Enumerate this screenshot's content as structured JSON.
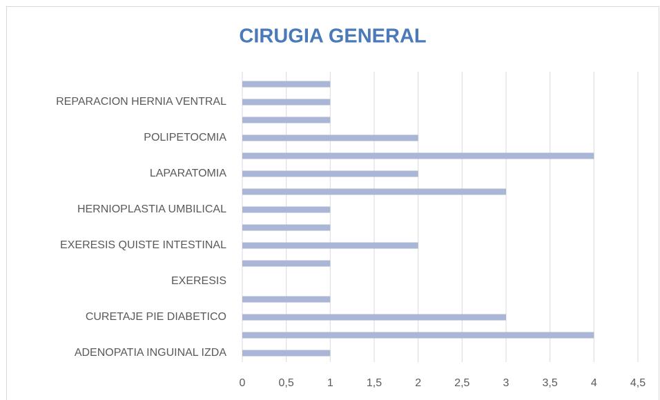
{
  "chart_data": {
    "type": "bar",
    "orientation": "horizontal",
    "title": "CIRUGIA GENERAL",
    "categories": [
      "ADENOPATIA INGUINAL IZDA",
      null,
      "CURETAJE PIE DIABETICO",
      null,
      "EXERESIS",
      null,
      "EXERESIS QUISTE INTESTINAL",
      null,
      "HERNIOPLASTIA UMBILICAL",
      null,
      "LAPARATOMIA",
      null,
      "POLIPETOCMIA",
      null,
      "REPARACION HERNIA VENTRAL",
      null
    ],
    "values": [
      1,
      4,
      3,
      1,
      0,
      1,
      2,
      1,
      1,
      3,
      2,
      4,
      2,
      1,
      1,
      1
    ],
    "color": "#a9b6d6",
    "xlim": [
      0,
      4.5
    ],
    "xticks": [
      0,
      {
        "value": 0.5,
        "label": "0,5"
      },
      1,
      {
        "value": 1.5,
        "label": "1,5"
      },
      2,
      {
        "value": 2.5,
        "label": "2,5"
      },
      3,
      {
        "value": 3.5,
        "label": "3,5"
      },
      4,
      {
        "value": 4.5,
        "label": "4,5"
      }
    ],
    "grid": true
  }
}
